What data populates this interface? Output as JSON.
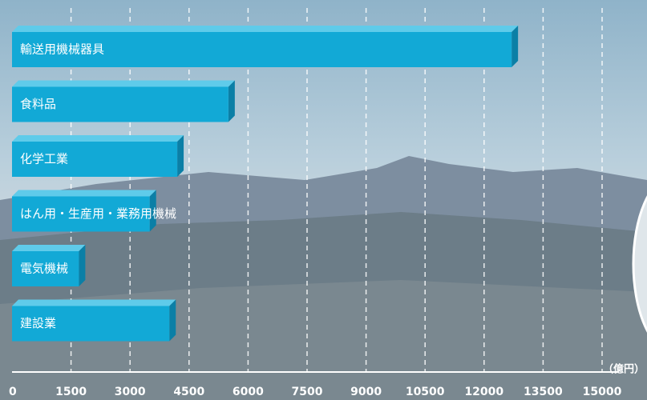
{
  "chart_data": {
    "type": "bar",
    "orientation": "horizontal",
    "categories": [
      "輸送用機械器具",
      "食料品",
      "化学工業",
      "はん用・生産用・業務用機械",
      "電気機械",
      "建設業"
    ],
    "values": [
      12700,
      5500,
      4200,
      3500,
      1700,
      4000
    ],
    "color": "#12a9d6",
    "xlabel": "（億円）",
    "xlim": [
      0,
      15000
    ],
    "xticks": [
      0,
      1500,
      3000,
      4500,
      6000,
      7500,
      9000,
      10500,
      12000,
      13500,
      15000
    ],
    "grid": true
  }
}
